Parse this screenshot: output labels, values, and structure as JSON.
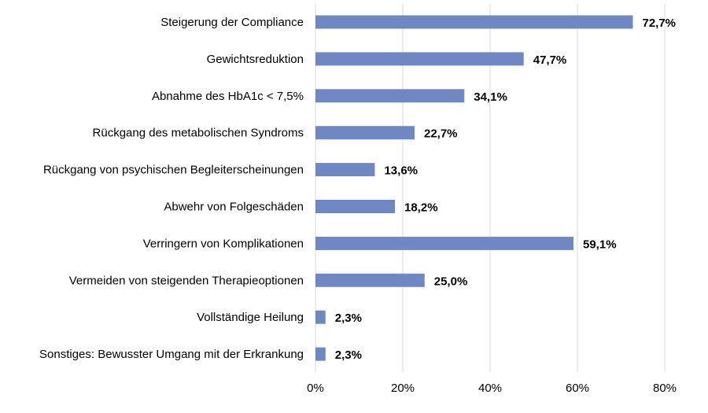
{
  "chart_data": {
    "type": "bar",
    "orientation": "horizontal",
    "title": "",
    "xlabel": "",
    "ylabel": "",
    "categories": [
      "Steigerung der Compliance",
      "Gewichtsreduktion",
      "Abnahme des HbA1c < 7,5%",
      "Rückgang des metabolischen Syndroms",
      "Rückgang von psychischen Begleiterscheinungen",
      "Abwehr von Folgeschäden",
      "Verringern von Komplikationen",
      "Vermeiden von steigenden Therapieoptionen",
      "Vollständige Heilung",
      "Sonstiges: Bewusster Umgang mit der Erkrankung"
    ],
    "values": [
      72.7,
      47.7,
      34.1,
      22.7,
      13.6,
      18.2,
      59.1,
      25.0,
      2.3,
      2.3
    ],
    "value_labels": [
      "72,7%",
      "47,7%",
      "34,1%",
      "22,7%",
      "13,6%",
      "18,2%",
      "59,1%",
      "25,0%",
      "2,3%",
      "2,3%"
    ],
    "xlim": [
      0,
      80
    ],
    "ticks": [
      0,
      20,
      40,
      60,
      80
    ],
    "tick_labels": [
      "0%",
      "20%",
      "40%",
      "60%",
      "80%"
    ],
    "grid": true,
    "bar_color": "#6F88C4",
    "grid_color": "#D9D9D9"
  }
}
